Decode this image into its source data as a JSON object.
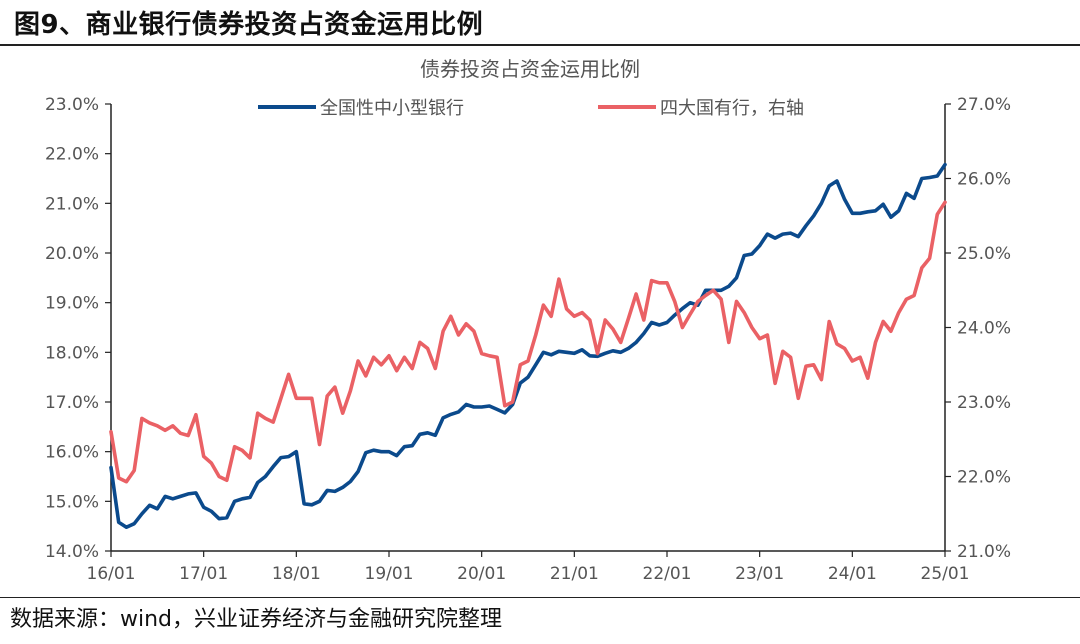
{
  "figure": {
    "title": "图9、商业银行债券投资占资金运用比例",
    "source": "数据来源：wind，兴业证券经济与金融研究院整理"
  },
  "chart_data": {
    "type": "line",
    "title": "债券投资占资金运用比例",
    "x_ticks": [
      "16/01",
      "17/01",
      "18/01",
      "19/01",
      "20/01",
      "21/01",
      "22/01",
      "23/01",
      "24/01",
      "25/01"
    ],
    "x_range": [
      "2016-01",
      "2025-01"
    ],
    "y_left": {
      "min": 14.0,
      "max": 23.0,
      "ticks": [
        "14.0%",
        "15.0%",
        "16.0%",
        "17.0%",
        "18.0%",
        "19.0%",
        "20.0%",
        "21.0%",
        "22.0%",
        "23.0%"
      ]
    },
    "y_right": {
      "min": 21.0,
      "max": 27.0,
      "ticks": [
        "21.0%",
        "22.0%",
        "23.0%",
        "24.0%",
        "25.0%",
        "26.0%",
        "27.0%"
      ]
    },
    "legend_position": "top",
    "series": [
      {
        "name": "全国性中小型银行",
        "axis": "left",
        "color": "#0b4a8c",
        "points": [
          [
            "2016-01",
            15.68
          ],
          [
            "2016-02",
            14.58
          ],
          [
            "2016-03",
            14.48
          ],
          [
            "2016-04",
            14.55
          ],
          [
            "2016-05",
            14.75
          ],
          [
            "2016-06",
            14.92
          ],
          [
            "2016-07",
            14.85
          ],
          [
            "2016-08",
            15.1
          ],
          [
            "2016-09",
            15.05
          ],
          [
            "2016-10",
            15.1
          ],
          [
            "2016-11",
            15.15
          ],
          [
            "2016-12",
            15.17
          ],
          [
            "2017-01",
            14.88
          ],
          [
            "2017-02",
            14.8
          ],
          [
            "2017-03",
            14.65
          ],
          [
            "2017-04",
            14.67
          ],
          [
            "2017-05",
            15.0
          ],
          [
            "2017-06",
            15.05
          ],
          [
            "2017-07",
            15.08
          ],
          [
            "2017-08",
            15.38
          ],
          [
            "2017-09",
            15.5
          ],
          [
            "2017-10",
            15.7
          ],
          [
            "2017-11",
            15.88
          ],
          [
            "2017-12",
            15.9
          ],
          [
            "2018-01",
            16.0
          ],
          [
            "2018-02",
            14.95
          ],
          [
            "2018-03",
            14.93
          ],
          [
            "2018-04",
            15.0
          ],
          [
            "2018-05",
            15.22
          ],
          [
            "2018-06",
            15.2
          ],
          [
            "2018-07",
            15.28
          ],
          [
            "2018-08",
            15.4
          ],
          [
            "2018-09",
            15.6
          ],
          [
            "2018-10",
            15.98
          ],
          [
            "2018-11",
            16.03
          ],
          [
            "2018-12",
            16.0
          ],
          [
            "2019-01",
            16.0
          ],
          [
            "2019-02",
            15.92
          ],
          [
            "2019-03",
            16.1
          ],
          [
            "2019-04",
            16.12
          ],
          [
            "2019-05",
            16.35
          ],
          [
            "2019-06",
            16.38
          ],
          [
            "2019-07",
            16.33
          ],
          [
            "2019-08",
            16.68
          ],
          [
            "2019-09",
            16.75
          ],
          [
            "2019-10",
            16.8
          ],
          [
            "2019-11",
            16.95
          ],
          [
            "2019-12",
            16.9
          ],
          [
            "2020-01",
            16.9
          ],
          [
            "2020-02",
            16.92
          ],
          [
            "2020-03",
            16.85
          ],
          [
            "2020-04",
            16.78
          ],
          [
            "2020-05",
            16.95
          ],
          [
            "2020-06",
            17.38
          ],
          [
            "2020-07",
            17.5
          ],
          [
            "2020-08",
            17.75
          ],
          [
            "2020-09",
            18.0
          ],
          [
            "2020-10",
            17.95
          ],
          [
            "2020-11",
            18.02
          ],
          [
            "2020-12",
            18.0
          ],
          [
            "2021-01",
            17.98
          ],
          [
            "2021-02",
            18.05
          ],
          [
            "2021-03",
            17.93
          ],
          [
            "2021-04",
            17.92
          ],
          [
            "2021-05",
            17.98
          ],
          [
            "2021-06",
            18.03
          ],
          [
            "2021-07",
            18.0
          ],
          [
            "2021-08",
            18.08
          ],
          [
            "2021-09",
            18.2
          ],
          [
            "2021-10",
            18.38
          ],
          [
            "2021-11",
            18.6
          ],
          [
            "2021-12",
            18.55
          ],
          [
            "2022-01",
            18.6
          ],
          [
            "2022-02",
            18.75
          ],
          [
            "2022-03",
            18.88
          ],
          [
            "2022-04",
            19.0
          ],
          [
            "2022-05",
            18.95
          ],
          [
            "2022-06",
            19.25
          ],
          [
            "2022-07",
            19.25
          ],
          [
            "2022-08",
            19.25
          ],
          [
            "2022-09",
            19.33
          ],
          [
            "2022-10",
            19.5
          ],
          [
            "2022-11",
            19.95
          ],
          [
            "2022-12",
            19.98
          ],
          [
            "2023-01",
            20.15
          ],
          [
            "2023-02",
            20.38
          ],
          [
            "2023-03",
            20.3
          ],
          [
            "2023-04",
            20.38
          ],
          [
            "2023-05",
            20.4
          ],
          [
            "2023-06",
            20.33
          ],
          [
            "2023-07",
            20.55
          ],
          [
            "2023-08",
            20.75
          ],
          [
            "2023-09",
            21.0
          ],
          [
            "2023-10",
            21.35
          ],
          [
            "2023-11",
            21.45
          ],
          [
            "2023-12",
            21.08
          ],
          [
            "2024-01",
            20.8
          ],
          [
            "2024-02",
            20.8
          ],
          [
            "2024-03",
            20.83
          ],
          [
            "2024-04",
            20.85
          ],
          [
            "2024-05",
            20.98
          ],
          [
            "2024-06",
            20.72
          ],
          [
            "2024-07",
            20.85
          ],
          [
            "2024-08",
            21.2
          ],
          [
            "2024-09",
            21.1
          ],
          [
            "2024-10",
            21.5
          ],
          [
            "2024-11",
            21.52
          ],
          [
            "2024-12",
            21.55
          ],
          [
            "2025-01",
            21.78
          ]
        ]
      },
      {
        "name": "四大国有行，右轴",
        "axis": "right",
        "color": "#ea6165",
        "points": [
          [
            "2016-01",
            22.6
          ],
          [
            "2016-02",
            21.98
          ],
          [
            "2016-03",
            21.93
          ],
          [
            "2016-04",
            22.08
          ],
          [
            "2016-05",
            22.78
          ],
          [
            "2016-06",
            22.72
          ],
          [
            "2016-07",
            22.68
          ],
          [
            "2016-08",
            22.62
          ],
          [
            "2016-09",
            22.68
          ],
          [
            "2016-10",
            22.58
          ],
          [
            "2016-11",
            22.55
          ],
          [
            "2016-12",
            22.83
          ],
          [
            "2017-01",
            22.27
          ],
          [
            "2017-02",
            22.18
          ],
          [
            "2017-03",
            22.0
          ],
          [
            "2017-04",
            21.95
          ],
          [
            "2017-05",
            22.4
          ],
          [
            "2017-06",
            22.35
          ],
          [
            "2017-07",
            22.25
          ],
          [
            "2017-08",
            22.85
          ],
          [
            "2017-09",
            22.78
          ],
          [
            "2017-10",
            22.73
          ],
          [
            "2017-11",
            23.05
          ],
          [
            "2017-12",
            23.37
          ],
          [
            "2018-01",
            23.05
          ],
          [
            "2018-02",
            23.05
          ],
          [
            "2018-03",
            23.05
          ],
          [
            "2018-04",
            22.43
          ],
          [
            "2018-05",
            23.08
          ],
          [
            "2018-06",
            23.2
          ],
          [
            "2018-07",
            22.85
          ],
          [
            "2018-08",
            23.15
          ],
          [
            "2018-09",
            23.55
          ],
          [
            "2018-10",
            23.35
          ],
          [
            "2018-11",
            23.6
          ],
          [
            "2018-12",
            23.5
          ],
          [
            "2019-01",
            23.62
          ],
          [
            "2019-02",
            23.42
          ],
          [
            "2019-03",
            23.6
          ],
          [
            "2019-04",
            23.45
          ],
          [
            "2019-05",
            23.8
          ],
          [
            "2019-06",
            23.72
          ],
          [
            "2019-07",
            23.45
          ],
          [
            "2019-08",
            23.95
          ],
          [
            "2019-09",
            24.15
          ],
          [
            "2019-10",
            23.9
          ],
          [
            "2019-11",
            24.05
          ],
          [
            "2019-12",
            23.95
          ],
          [
            "2020-01",
            23.65
          ],
          [
            "2020-02",
            23.62
          ],
          [
            "2020-03",
            23.6
          ],
          [
            "2020-04",
            22.95
          ],
          [
            "2020-05",
            23.0
          ],
          [
            "2020-06",
            23.5
          ],
          [
            "2020-07",
            23.55
          ],
          [
            "2020-08",
            23.9
          ],
          [
            "2020-09",
            24.3
          ],
          [
            "2020-10",
            24.15
          ],
          [
            "2020-11",
            24.65
          ],
          [
            "2020-12",
            24.25
          ],
          [
            "2021-01",
            24.15
          ],
          [
            "2021-02",
            24.2
          ],
          [
            "2021-03",
            24.1
          ],
          [
            "2021-04",
            23.65
          ],
          [
            "2021-05",
            24.1
          ],
          [
            "2021-06",
            23.98
          ],
          [
            "2021-07",
            23.8
          ],
          [
            "2021-08",
            24.12
          ],
          [
            "2021-09",
            24.45
          ],
          [
            "2021-10",
            24.1
          ],
          [
            "2021-11",
            24.63
          ],
          [
            "2021-12",
            24.6
          ],
          [
            "2022-01",
            24.6
          ],
          [
            "2022-02",
            24.35
          ],
          [
            "2022-03",
            24.0
          ],
          [
            "2022-04",
            24.18
          ],
          [
            "2022-05",
            24.35
          ],
          [
            "2022-06",
            24.43
          ],
          [
            "2022-07",
            24.5
          ],
          [
            "2022-08",
            24.38
          ],
          [
            "2022-09",
            23.8
          ],
          [
            "2022-10",
            24.35
          ],
          [
            "2022-11",
            24.2
          ],
          [
            "2022-12",
            24.0
          ],
          [
            "2023-01",
            23.85
          ],
          [
            "2023-02",
            23.9
          ],
          [
            "2023-03",
            23.25
          ],
          [
            "2023-04",
            23.68
          ],
          [
            "2023-05",
            23.6
          ],
          [
            "2023-06",
            23.05
          ],
          [
            "2023-07",
            23.48
          ],
          [
            "2023-08",
            23.5
          ],
          [
            "2023-09",
            23.3
          ],
          [
            "2023-10",
            24.08
          ],
          [
            "2023-11",
            23.78
          ],
          [
            "2023-12",
            23.72
          ],
          [
            "2024-01",
            23.55
          ],
          [
            "2024-02",
            23.6
          ],
          [
            "2024-03",
            23.32
          ],
          [
            "2024-04",
            23.8
          ],
          [
            "2024-05",
            24.08
          ],
          [
            "2024-06",
            23.95
          ],
          [
            "2024-07",
            24.2
          ],
          [
            "2024-08",
            24.38
          ],
          [
            "2024-09",
            24.43
          ],
          [
            "2024-10",
            24.8
          ],
          [
            "2024-11",
            24.93
          ],
          [
            "2024-12",
            25.52
          ],
          [
            "2025-01",
            25.68
          ]
        ]
      }
    ]
  }
}
